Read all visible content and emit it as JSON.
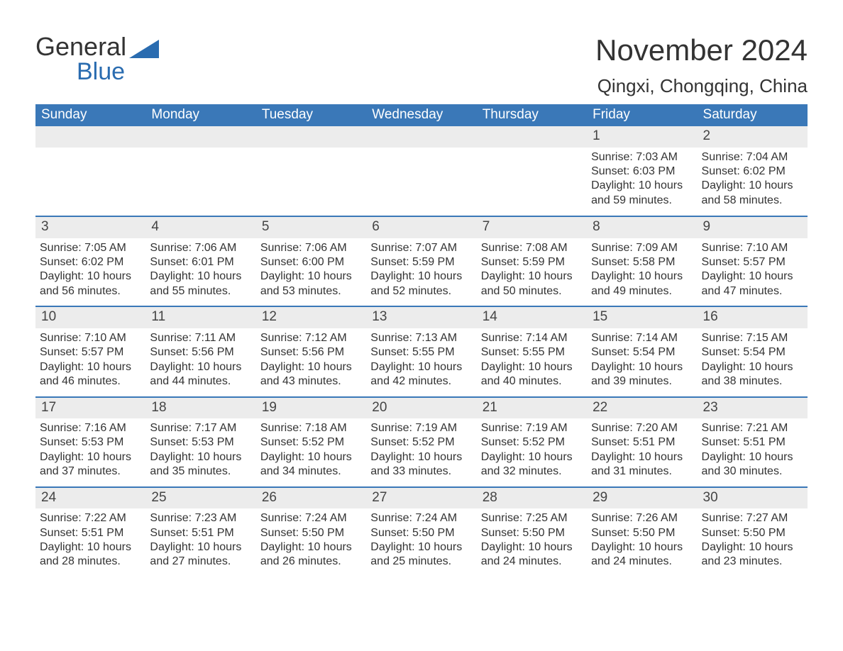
{
  "brand": {
    "word1": "General",
    "word2": "Blue",
    "logo_color": "#2a6cb0",
    "text_color": "#333333"
  },
  "header": {
    "month_title": "November 2024",
    "location": "Qingxi, Chongqing, China"
  },
  "calendar": {
    "type": "table",
    "header_bg": "#3a78b8",
    "header_text_color": "#ffffff",
    "row_separator_color": "#3a78b8",
    "daynum_bg": "#ececec",
    "background_color": "#ffffff",
    "text_color": "#333333",
    "font_size_body": 16,
    "font_size_header": 19,
    "days_of_week": [
      "Sunday",
      "Monday",
      "Tuesday",
      "Wednesday",
      "Thursday",
      "Friday",
      "Saturday"
    ],
    "weeks": [
      [
        null,
        null,
        null,
        null,
        null,
        {
          "n": "1",
          "sunrise": "7:03 AM",
          "sunset": "6:03 PM",
          "daylight": "10 hours and 59 minutes."
        },
        {
          "n": "2",
          "sunrise": "7:04 AM",
          "sunset": "6:02 PM",
          "daylight": "10 hours and 58 minutes."
        }
      ],
      [
        {
          "n": "3",
          "sunrise": "7:05 AM",
          "sunset": "6:02 PM",
          "daylight": "10 hours and 56 minutes."
        },
        {
          "n": "4",
          "sunrise": "7:06 AM",
          "sunset": "6:01 PM",
          "daylight": "10 hours and 55 minutes."
        },
        {
          "n": "5",
          "sunrise": "7:06 AM",
          "sunset": "6:00 PM",
          "daylight": "10 hours and 53 minutes."
        },
        {
          "n": "6",
          "sunrise": "7:07 AM",
          "sunset": "5:59 PM",
          "daylight": "10 hours and 52 minutes."
        },
        {
          "n": "7",
          "sunrise": "7:08 AM",
          "sunset": "5:59 PM",
          "daylight": "10 hours and 50 minutes."
        },
        {
          "n": "8",
          "sunrise": "7:09 AM",
          "sunset": "5:58 PM",
          "daylight": "10 hours and 49 minutes."
        },
        {
          "n": "9",
          "sunrise": "7:10 AM",
          "sunset": "5:57 PM",
          "daylight": "10 hours and 47 minutes."
        }
      ],
      [
        {
          "n": "10",
          "sunrise": "7:10 AM",
          "sunset": "5:57 PM",
          "daylight": "10 hours and 46 minutes."
        },
        {
          "n": "11",
          "sunrise": "7:11 AM",
          "sunset": "5:56 PM",
          "daylight": "10 hours and 44 minutes."
        },
        {
          "n": "12",
          "sunrise": "7:12 AM",
          "sunset": "5:56 PM",
          "daylight": "10 hours and 43 minutes."
        },
        {
          "n": "13",
          "sunrise": "7:13 AM",
          "sunset": "5:55 PM",
          "daylight": "10 hours and 42 minutes."
        },
        {
          "n": "14",
          "sunrise": "7:14 AM",
          "sunset": "5:55 PM",
          "daylight": "10 hours and 40 minutes."
        },
        {
          "n": "15",
          "sunrise": "7:14 AM",
          "sunset": "5:54 PM",
          "daylight": "10 hours and 39 minutes."
        },
        {
          "n": "16",
          "sunrise": "7:15 AM",
          "sunset": "5:54 PM",
          "daylight": "10 hours and 38 minutes."
        }
      ],
      [
        {
          "n": "17",
          "sunrise": "7:16 AM",
          "sunset": "5:53 PM",
          "daylight": "10 hours and 37 minutes."
        },
        {
          "n": "18",
          "sunrise": "7:17 AM",
          "sunset": "5:53 PM",
          "daylight": "10 hours and 35 minutes."
        },
        {
          "n": "19",
          "sunrise": "7:18 AM",
          "sunset": "5:52 PM",
          "daylight": "10 hours and 34 minutes."
        },
        {
          "n": "20",
          "sunrise": "7:19 AM",
          "sunset": "5:52 PM",
          "daylight": "10 hours and 33 minutes."
        },
        {
          "n": "21",
          "sunrise": "7:19 AM",
          "sunset": "5:52 PM",
          "daylight": "10 hours and 32 minutes."
        },
        {
          "n": "22",
          "sunrise": "7:20 AM",
          "sunset": "5:51 PM",
          "daylight": "10 hours and 31 minutes."
        },
        {
          "n": "23",
          "sunrise": "7:21 AM",
          "sunset": "5:51 PM",
          "daylight": "10 hours and 30 minutes."
        }
      ],
      [
        {
          "n": "24",
          "sunrise": "7:22 AM",
          "sunset": "5:51 PM",
          "daylight": "10 hours and 28 minutes."
        },
        {
          "n": "25",
          "sunrise": "7:23 AM",
          "sunset": "5:51 PM",
          "daylight": "10 hours and 27 minutes."
        },
        {
          "n": "26",
          "sunrise": "7:24 AM",
          "sunset": "5:50 PM",
          "daylight": "10 hours and 26 minutes."
        },
        {
          "n": "27",
          "sunrise": "7:24 AM",
          "sunset": "5:50 PM",
          "daylight": "10 hours and 25 minutes."
        },
        {
          "n": "28",
          "sunrise": "7:25 AM",
          "sunset": "5:50 PM",
          "daylight": "10 hours and 24 minutes."
        },
        {
          "n": "29",
          "sunrise": "7:26 AM",
          "sunset": "5:50 PM",
          "daylight": "10 hours and 24 minutes."
        },
        {
          "n": "30",
          "sunrise": "7:27 AM",
          "sunset": "5:50 PM",
          "daylight": "10 hours and 23 minutes."
        }
      ]
    ],
    "labels": {
      "sunrise_prefix": "Sunrise: ",
      "sunset_prefix": "Sunset: ",
      "daylight_prefix": "Daylight: "
    }
  }
}
